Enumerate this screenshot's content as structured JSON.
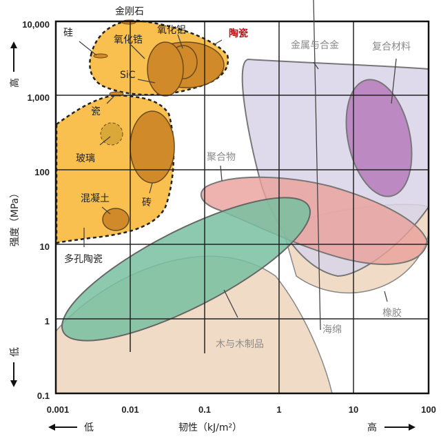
{
  "title_top": "金刚石",
  "axes": {
    "y_label": "强度（MPa）",
    "y_high": "高",
    "y_low": "低",
    "x_label": "韧性（kJ/m²）",
    "x_low": "低",
    "x_high": "高",
    "x_ticks": [
      "0.001",
      "0.01",
      "0.1",
      "1",
      "10",
      "100"
    ],
    "y_ticks": [
      "10,000",
      "1,000",
      "100",
      "10",
      "1",
      "0.1"
    ]
  },
  "regions": {
    "ceramics": "陶瓷",
    "silicon": "硅",
    "zirconia": "氧化锆",
    "alumina": "氧化铝",
    "sic": "SiC",
    "porcelain": "瓷",
    "glass": "玻璃",
    "brick": "砖",
    "concrete": "混凝土",
    "porous_ceramics": "多孔陶瓷",
    "metals": "金属与合金",
    "composites": "复合材料",
    "polymers": "聚合物",
    "wood": "木与木制品",
    "foam": "海绵",
    "rubber": "橡胶"
  },
  "colors": {
    "ceramic": "#f8b93c",
    "ceramic_dark": "#d08a2a",
    "metal": "#d8d3e8",
    "composite": "#b474b8",
    "polymer": "#eaa09a",
    "wood": "#78bfa0",
    "foam": "#f0dcc6"
  }
}
